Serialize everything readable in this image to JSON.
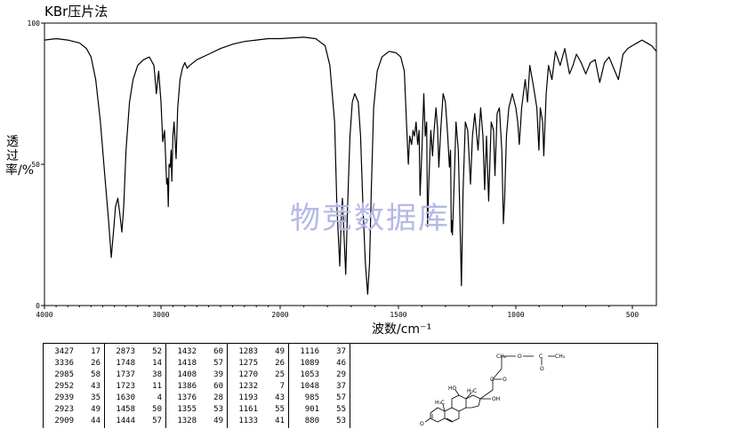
{
  "title": "KBr压片法",
  "watermark": "物竞数据库",
  "chart_data": {
    "type": "line",
    "xlabel": "波数/cm⁻¹",
    "ylabel": "透过率/%",
    "xlim": [
      4000,
      400
    ],
    "ylim": [
      0,
      100
    ],
    "x_ticks": [
      "4000",
      "3000",
      "2000",
      "1500",
      "1000",
      "500"
    ],
    "y_ticks": [
      "0",
      "50",
      "100"
    ],
    "series": [
      {
        "points": [
          [
            4000,
            94
          ],
          [
            3900,
            94.5
          ],
          [
            3800,
            94
          ],
          [
            3700,
            93
          ],
          [
            3640,
            91
          ],
          [
            3600,
            88
          ],
          [
            3560,
            80
          ],
          [
            3520,
            65
          ],
          [
            3480,
            45
          ],
          [
            3450,
            30
          ],
          [
            3427,
            17
          ],
          [
            3410,
            25
          ],
          [
            3390,
            35
          ],
          [
            3370,
            38
          ],
          [
            3355,
            33
          ],
          [
            3336,
            26
          ],
          [
            3320,
            35
          ],
          [
            3300,
            55
          ],
          [
            3270,
            72
          ],
          [
            3240,
            80
          ],
          [
            3200,
            85
          ],
          [
            3150,
            87
          ],
          [
            3100,
            88
          ],
          [
            3060,
            85
          ],
          [
            3040,
            75
          ],
          [
            3020,
            83
          ],
          [
            3000,
            72
          ],
          [
            2985,
            58
          ],
          [
            2970,
            62
          ],
          [
            2952,
            43
          ],
          [
            2945,
            45
          ],
          [
            2939,
            35
          ],
          [
            2932,
            50
          ],
          [
            2923,
            49
          ],
          [
            2915,
            55
          ],
          [
            2909,
            44
          ],
          [
            2900,
            60
          ],
          [
            2890,
            65
          ],
          [
            2873,
            52
          ],
          [
            2860,
            70
          ],
          [
            2840,
            80
          ],
          [
            2820,
            84
          ],
          [
            2800,
            86
          ],
          [
            2780,
            84
          ],
          [
            2760,
            85
          ],
          [
            2700,
            87
          ],
          [
            2600,
            89
          ],
          [
            2500,
            91
          ],
          [
            2400,
            92.5
          ],
          [
            2300,
            93.5
          ],
          [
            2200,
            94
          ],
          [
            2100,
            94.5
          ],
          [
            2000,
            94.5
          ],
          [
            1900,
            95
          ],
          [
            1850,
            94.5
          ],
          [
            1810,
            92
          ],
          [
            1790,
            85
          ],
          [
            1770,
            65
          ],
          [
            1760,
            35
          ],
          [
            1748,
            14
          ],
          [
            1742,
            30
          ],
          [
            1737,
            38
          ],
          [
            1730,
            25
          ],
          [
            1723,
            11
          ],
          [
            1715,
            35
          ],
          [
            1705,
            60
          ],
          [
            1695,
            72
          ],
          [
            1685,
            75
          ],
          [
            1670,
            72
          ],
          [
            1660,
            60
          ],
          [
            1650,
            35
          ],
          [
            1640,
            15
          ],
          [
            1630,
            4
          ],
          [
            1622,
            15
          ],
          [
            1615,
            40
          ],
          [
            1605,
            70
          ],
          [
            1590,
            83
          ],
          [
            1570,
            88
          ],
          [
            1540,
            90
          ],
          [
            1510,
            89.5
          ],
          [
            1490,
            88
          ],
          [
            1475,
            83
          ],
          [
            1466,
            65
          ],
          [
            1458,
            50
          ],
          [
            1452,
            60
          ],
          [
            1444,
            57
          ],
          [
            1438,
            62
          ],
          [
            1432,
            60
          ],
          [
            1425,
            65
          ],
          [
            1418,
            57
          ],
          [
            1412,
            62
          ],
          [
            1408,
            39
          ],
          [
            1400,
            55
          ],
          [
            1392,
            75
          ],
          [
            1386,
            60
          ],
          [
            1380,
            65
          ],
          [
            1376,
            28
          ],
          [
            1370,
            45
          ],
          [
            1362,
            62
          ],
          [
            1355,
            53
          ],
          [
            1348,
            62
          ],
          [
            1340,
            70
          ],
          [
            1333,
            62
          ],
          [
            1328,
            49
          ],
          [
            1320,
            62
          ],
          [
            1310,
            75
          ],
          [
            1300,
            72
          ],
          [
            1290,
            60
          ],
          [
            1283,
            49
          ],
          [
            1278,
            55
          ],
          [
            1275,
            26
          ],
          [
            1272,
            30
          ],
          [
            1270,
            25
          ],
          [
            1262,
            45
          ],
          [
            1255,
            65
          ],
          [
            1245,
            55
          ],
          [
            1240,
            38
          ],
          [
            1232,
            7
          ],
          [
            1225,
            40
          ],
          [
            1215,
            65
          ],
          [
            1205,
            62
          ],
          [
            1193,
            43
          ],
          [
            1185,
            60
          ],
          [
            1175,
            68
          ],
          [
            1161,
            55
          ],
          [
            1150,
            70
          ],
          [
            1140,
            60
          ],
          [
            1133,
            41
          ],
          [
            1125,
            60
          ],
          [
            1116,
            37
          ],
          [
            1105,
            65
          ],
          [
            1095,
            62
          ],
          [
            1089,
            46
          ],
          [
            1080,
            68
          ],
          [
            1070,
            70
          ],
          [
            1060,
            55
          ],
          [
            1053,
            29
          ],
          [
            1048,
            37
          ],
          [
            1040,
            60
          ],
          [
            1030,
            70
          ],
          [
            1015,
            75
          ],
          [
            1000,
            70
          ],
          [
            992,
            65
          ],
          [
            985,
            57
          ],
          [
            975,
            70
          ],
          [
            960,
            80
          ],
          [
            950,
            72
          ],
          [
            940,
            85
          ],
          [
            925,
            78
          ],
          [
            910,
            70
          ],
          [
            901,
            55
          ],
          [
            895,
            70
          ],
          [
            885,
            65
          ],
          [
            880,
            53
          ],
          [
            870,
            75
          ],
          [
            860,
            85
          ],
          [
            845,
            80
          ],
          [
            830,
            90
          ],
          [
            810,
            85
          ],
          [
            790,
            91
          ],
          [
            770,
            82
          ],
          [
            755,
            85
          ],
          [
            740,
            89
          ],
          [
            720,
            86
          ],
          [
            700,
            82
          ],
          [
            680,
            86
          ],
          [
            660,
            87
          ],
          [
            640,
            79
          ],
          [
            620,
            86
          ],
          [
            600,
            88
          ],
          [
            580,
            84
          ],
          [
            560,
            80
          ],
          [
            540,
            89
          ],
          [
            520,
            91
          ],
          [
            500,
            92
          ],
          [
            480,
            93
          ],
          [
            460,
            94
          ],
          [
            440,
            93
          ],
          [
            420,
            92
          ],
          [
            400,
            90
          ]
        ]
      }
    ]
  },
  "peak_table": {
    "columns": [
      [
        [
          "3427",
          "17"
        ],
        [
          "3336",
          "26"
        ],
        [
          "2985",
          "58"
        ],
        [
          "2952",
          "43"
        ],
        [
          "2939",
          "35"
        ],
        [
          "2923",
          "49"
        ],
        [
          "2909",
          "44"
        ]
      ],
      [
        [
          "2873",
          "52"
        ],
        [
          "1748",
          "14"
        ],
        [
          "1737",
          "38"
        ],
        [
          "1723",
          "11"
        ],
        [
          "1630",
          "4"
        ],
        [
          "1458",
          "50"
        ],
        [
          "1444",
          "57"
        ]
      ],
      [
        [
          "1432",
          "60"
        ],
        [
          "1418",
          "57"
        ],
        [
          "1408",
          "39"
        ],
        [
          "1386",
          "60"
        ],
        [
          "1376",
          "28"
        ],
        [
          "1355",
          "53"
        ],
        [
          "1328",
          "49"
        ]
      ],
      [
        [
          "1283",
          "49"
        ],
        [
          "1275",
          "26"
        ],
        [
          "1270",
          "25"
        ],
        [
          "1232",
          "7"
        ],
        [
          "1193",
          "43"
        ],
        [
          "1161",
          "55"
        ],
        [
          "1133",
          "41"
        ]
      ],
      [
        [
          "1116",
          "37"
        ],
        [
          "1089",
          "46"
        ],
        [
          "1053",
          "29"
        ],
        [
          "1048",
          "37"
        ],
        [
          "985",
          "57"
        ],
        [
          "901",
          "55"
        ],
        [
          "880",
          "53"
        ]
      ]
    ]
  },
  "structure": {
    "labels": {
      "ch2": "CH₂",
      "o_ester": "O",
      "c_acyl": "C",
      "ch3_acyl": "CH₃",
      "o_acyl": "O",
      "c20": "C",
      "o20": "O",
      "oh17": "OH",
      "ho11": "HO",
      "me18": "H₃C",
      "me19": "H₃C",
      "o3": "O"
    }
  }
}
